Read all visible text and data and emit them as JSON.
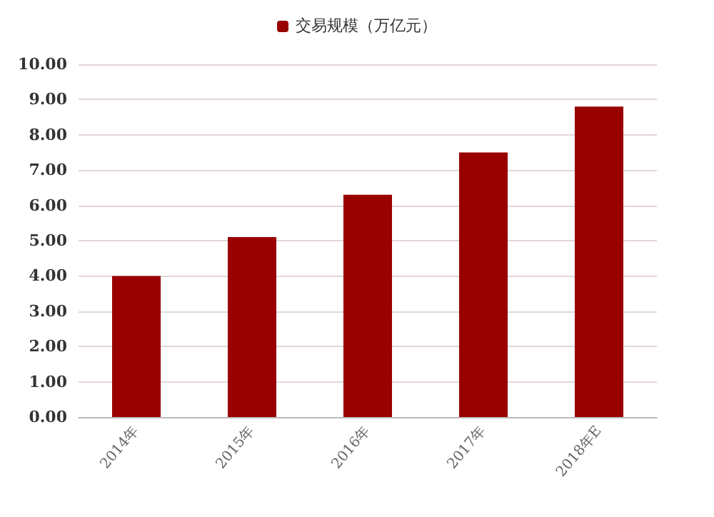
{
  "chart_data": {
    "type": "bar",
    "categories": [
      "2014年",
      "2015年",
      "2016年",
      "2017年",
      "2018年E"
    ],
    "series": [
      {
        "name": "交易规模（万亿元）",
        "color": "#990000",
        "values": [
          4.0,
          5.1,
          6.3,
          7.5,
          8.8
        ]
      }
    ],
    "ylim": [
      0,
      10
    ],
    "yticks": [
      {
        "value": 0,
        "label": "0.00"
      },
      {
        "value": 1,
        "label": "1.00"
      },
      {
        "value": 2,
        "label": "2.00"
      },
      {
        "value": 3,
        "label": "3.00"
      },
      {
        "value": 4,
        "label": "4.00"
      },
      {
        "value": 5,
        "label": "5.00"
      },
      {
        "value": 6,
        "label": "6.00"
      },
      {
        "value": 7,
        "label": "7.00"
      },
      {
        "value": 8,
        "label": "8.00"
      },
      {
        "value": 9,
        "label": "9.00"
      },
      {
        "value": 10,
        "label": "10.00"
      }
    ],
    "grid": "y",
    "legend": "top"
  }
}
